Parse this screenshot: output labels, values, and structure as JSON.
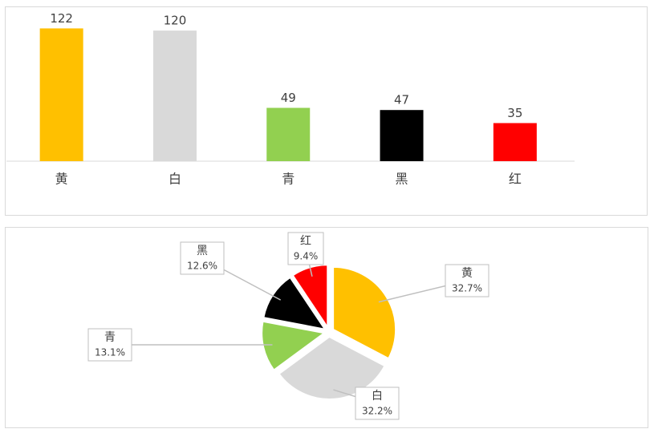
{
  "chart_data": [
    {
      "type": "bar",
      "categories": [
        "黄",
        "白",
        "青",
        "黑",
        "红"
      ],
      "values": [
        122,
        120,
        49,
        47,
        35
      ],
      "colors": [
        "#FFC000",
        "#D9D9D9",
        "#92D050",
        "#000000",
        "#FF0000"
      ],
      "ylim": [
        0,
        140
      ]
    },
    {
      "type": "pie",
      "categories": [
        "黄",
        "白",
        "青",
        "黑",
        "红"
      ],
      "values": [
        32.7,
        32.2,
        13.1,
        12.6,
        9.4
      ],
      "value_labels": [
        "32.7%",
        "32.2%",
        "13.1%",
        "12.6%",
        "9.4%"
      ],
      "colors": [
        "#FFC000",
        "#D9D9D9",
        "#92D050",
        "#000000",
        "#FF0000"
      ]
    }
  ]
}
